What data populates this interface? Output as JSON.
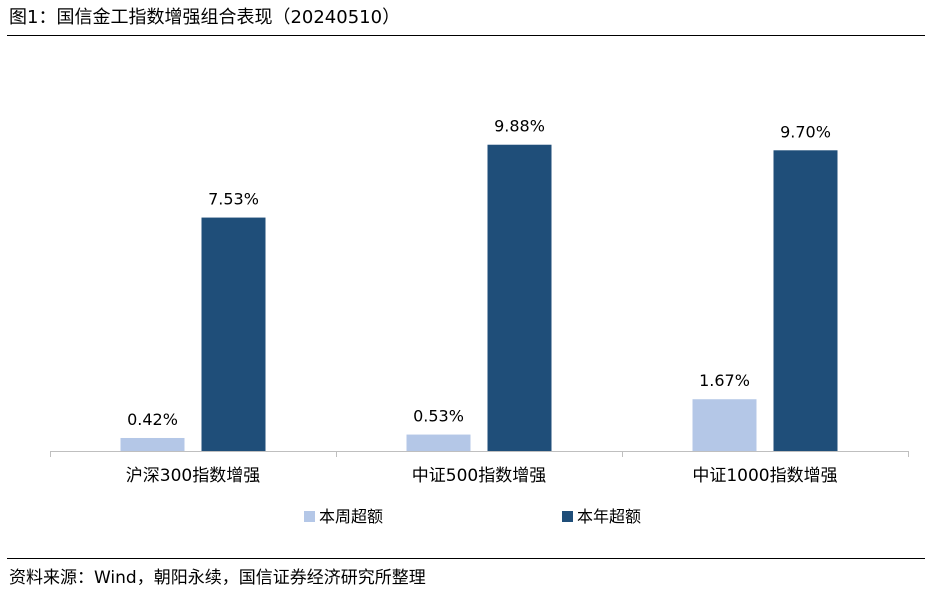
{
  "title": "图1：国信金工指数增强组合表现（20240510）",
  "source": "资料来源：Wind，朝阳永续，国信证券经济研究所整理",
  "chart_data": {
    "type": "bar",
    "categories": [
      "沪深300指数增强",
      "中证500指数增强",
      "中证1000指数增强"
    ],
    "series": [
      {
        "name": "本周超额",
        "values": [
          0.42,
          0.53,
          1.67
        ],
        "labels": [
          "0.42%",
          "0.53%",
          "1.67%"
        ],
        "color": "#B4C7E7"
      },
      {
        "name": "本年超额",
        "values": [
          7.53,
          9.88,
          9.7
        ],
        "labels": [
          "7.53%",
          "9.88%",
          "9.70%"
        ],
        "color": "#1F4E79"
      }
    ],
    "unit": "%",
    "ylim": [
      0,
      12
    ],
    "grid": false,
    "legend_position": "bottom"
  }
}
